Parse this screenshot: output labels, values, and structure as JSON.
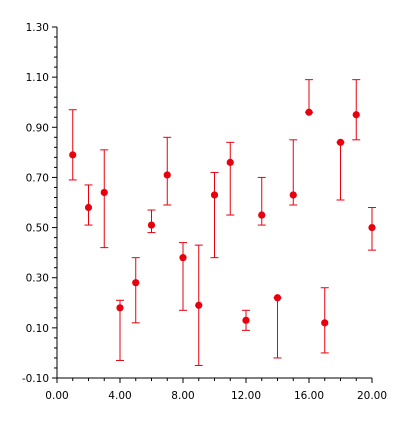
{
  "chart_data": {
    "type": "scatter",
    "title": "",
    "xlabel": "",
    "ylabel": "",
    "xlim": [
      0,
      20
    ],
    "ylim": [
      -0.1,
      1.3
    ],
    "grid": false,
    "legend": "none",
    "x_ticks": [
      "0.00",
      "4.00",
      "8.00",
      "12.00",
      "16.00",
      "20.00"
    ],
    "x_tick_values": [
      0,
      4,
      8,
      12,
      16,
      20
    ],
    "y_ticks": [
      "-0.10",
      "0.10",
      "0.30",
      "0.50",
      "0.70",
      "0.90",
      "1.10",
      "1.30"
    ],
    "y_tick_values": [
      -0.1,
      0.1,
      0.3,
      0.5,
      0.7,
      0.9,
      1.1,
      1.3
    ],
    "color": "#e8000f",
    "points": [
      {
        "x": 1,
        "y": 0.79,
        "low": 0.69,
        "high": 0.97
      },
      {
        "x": 2,
        "y": 0.58,
        "low": 0.51,
        "high": 0.67
      },
      {
        "x": 3,
        "y": 0.64,
        "low": 0.42,
        "high": 0.81
      },
      {
        "x": 4,
        "y": 0.18,
        "low": -0.03,
        "high": 0.21
      },
      {
        "x": 5,
        "y": 0.28,
        "low": 0.12,
        "high": 0.38
      },
      {
        "x": 6,
        "y": 0.51,
        "low": 0.48,
        "high": 0.57
      },
      {
        "x": 7,
        "y": 0.71,
        "low": 0.59,
        "high": 0.86
      },
      {
        "x": 8,
        "y": 0.38,
        "low": 0.17,
        "high": 0.44
      },
      {
        "x": 9,
        "y": 0.19,
        "low": -0.05,
        "high": 0.43
      },
      {
        "x": 10,
        "y": 0.63,
        "low": 0.38,
        "high": 0.72
      },
      {
        "x": 11,
        "y": 0.76,
        "low": 0.55,
        "high": 0.84
      },
      {
        "x": 12,
        "y": 0.13,
        "low": 0.09,
        "high": 0.17
      },
      {
        "x": 13,
        "y": 0.55,
        "low": 0.51,
        "high": 0.7
      },
      {
        "x": 14,
        "y": 0.22,
        "low": -0.02,
        "high": 0.22
      },
      {
        "x": 15,
        "y": 0.63,
        "low": 0.59,
        "high": 0.85
      },
      {
        "x": 16,
        "y": 0.96,
        "low": 0.96,
        "high": 1.09
      },
      {
        "x": 17,
        "y": 0.12,
        "low": 0.0,
        "high": 0.26
      },
      {
        "x": 18,
        "y": 0.84,
        "low": 0.61,
        "high": 0.84
      },
      {
        "x": 19,
        "y": 0.95,
        "low": 0.85,
        "high": 1.09
      },
      {
        "x": 20,
        "y": 0.5,
        "low": 0.41,
        "high": 0.58
      }
    ]
  }
}
